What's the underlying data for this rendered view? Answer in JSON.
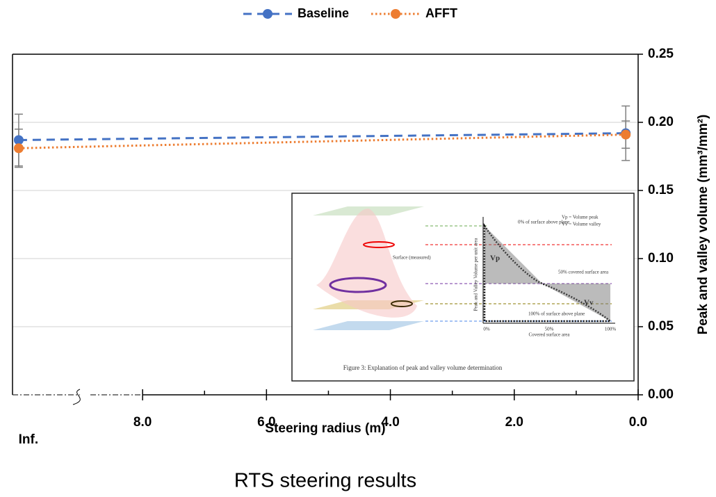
{
  "chart_data": {
    "type": "line",
    "title": "RTS steering results",
    "x_label": "Steering radius (m)",
    "y_label": "Peak and valley volume (mm³/mm²)",
    "x": [
      10,
      0.2
    ],
    "xlim": [
      10.1,
      0
    ],
    "xticks": [
      {
        "value": 10,
        "label": "Inf."
      },
      {
        "value": 8,
        "label": "8.0"
      },
      {
        "value": 6,
        "label": "6.0"
      },
      {
        "value": 4,
        "label": "4.0"
      },
      {
        "value": 2,
        "label": "2.0"
      },
      {
        "value": 0,
        "label": "0.0"
      }
    ],
    "xminor_ticks": [
      7,
      5,
      3,
      1
    ],
    "ylim": [
      0,
      0.25
    ],
    "yticks": [
      {
        "value": 0,
        "label": "0.00"
      },
      {
        "value": 0.05,
        "label": "0.05"
      },
      {
        "value": 0.1,
        "label": "0.10"
      },
      {
        "value": 0.15,
        "label": "0.15"
      },
      {
        "value": 0.2,
        "label": "0.20"
      },
      {
        "value": 0.25,
        "label": "0.25"
      }
    ],
    "y_axis_side": "right",
    "grid": true,
    "legend": "top",
    "series": [
      {
        "name": "Baseline",
        "color": "#4472c4",
        "dash": "dashed",
        "values": [
          0.187,
          0.192
        ],
        "errors": [
          0.019,
          0.02
        ]
      },
      {
        "name": "AFFT",
        "color": "#ed7d31",
        "dash": "dotted",
        "values": [
          0.181,
          0.191
        ],
        "errors": [
          0.014,
          0.01
        ]
      }
    ],
    "inset": {
      "caption": "Figure 3: Explanation of peak and valley volume determination",
      "note_top": "0% of surface above plane",
      "note_mid": "50% covered surface area",
      "note_bottom": "100% of surface above plane",
      "legend_vp": "Vp = Volume peak",
      "legend_vv": "Vv = Volume valley",
      "surface": "Surface (measured)",
      "y_title": "Peak and Valley Volume per unit area",
      "x_title": "Covered surface area",
      "x_ticks": [
        "0%",
        "50%",
        "100%"
      ],
      "vp": "Vp",
      "vv": "Vv"
    }
  }
}
